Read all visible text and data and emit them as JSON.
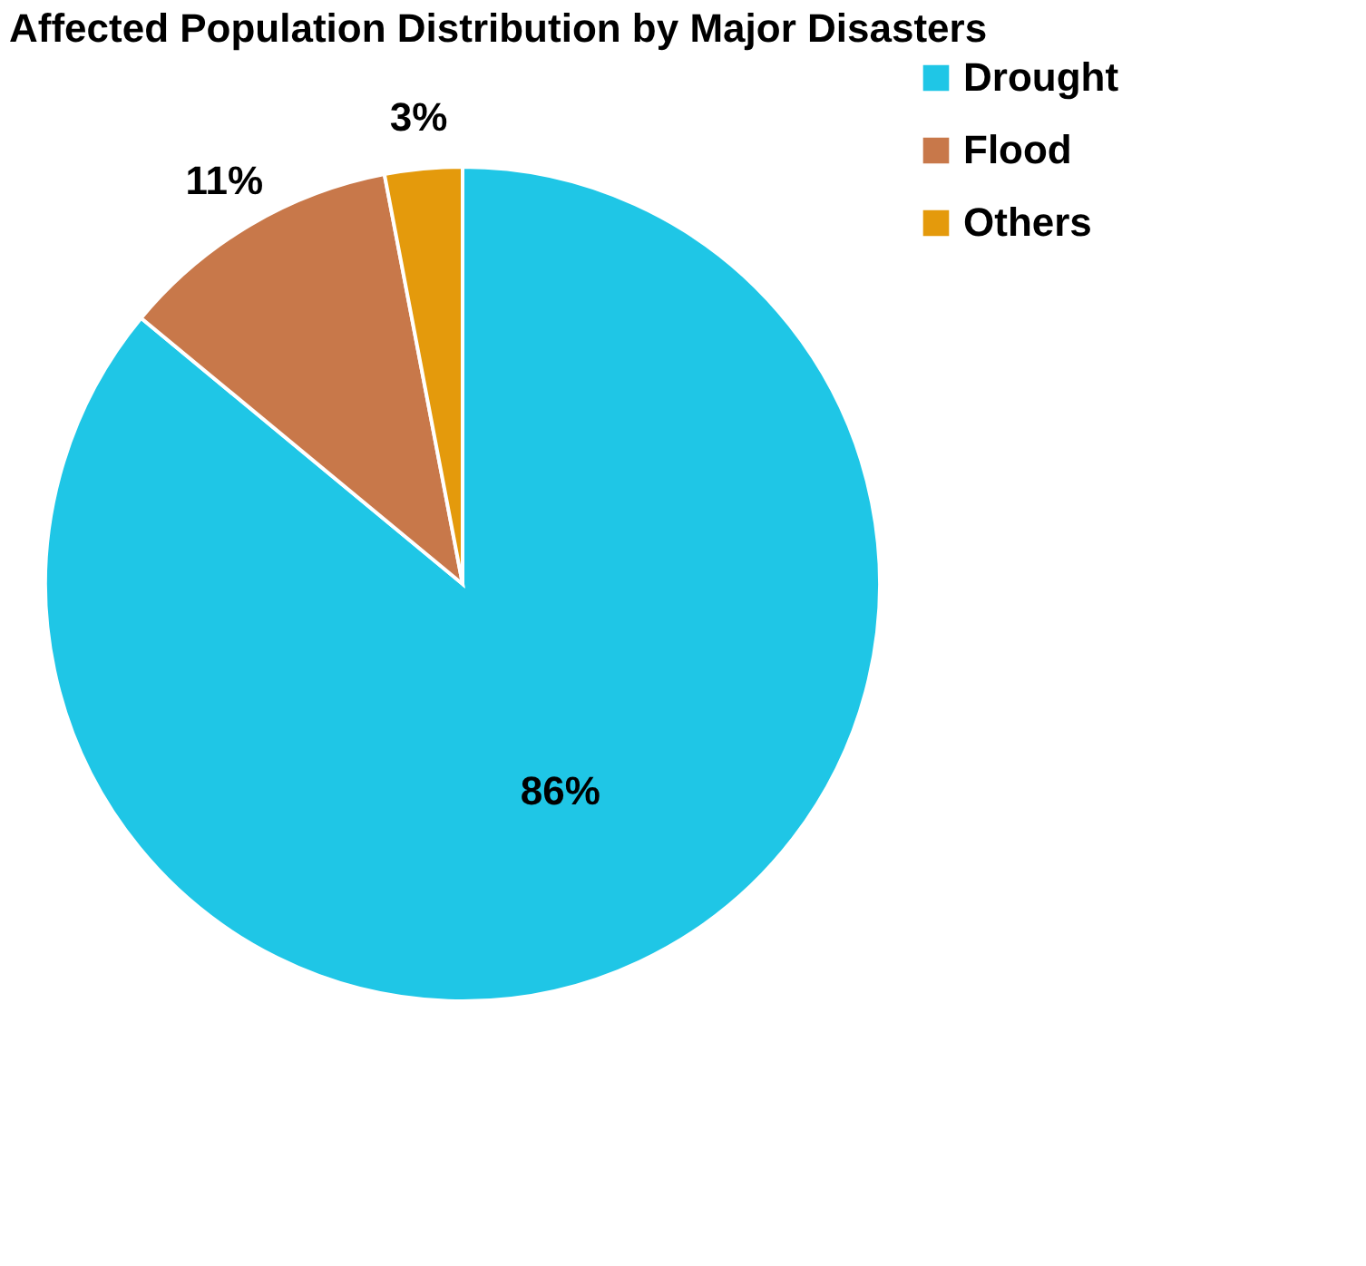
{
  "chart_data": {
    "type": "pie",
    "title": "Affected Population Distribution by Major Disasters",
    "categories": [
      "Drought",
      "Flood",
      "Others"
    ],
    "values": [
      86,
      11,
      3
    ],
    "colors": [
      "#1fc6e6",
      "#c8784a",
      "#e49a0c"
    ],
    "data_labels": true,
    "value_labels": [
      "86%",
      "11%",
      "3%"
    ],
    "legend": "right"
  }
}
